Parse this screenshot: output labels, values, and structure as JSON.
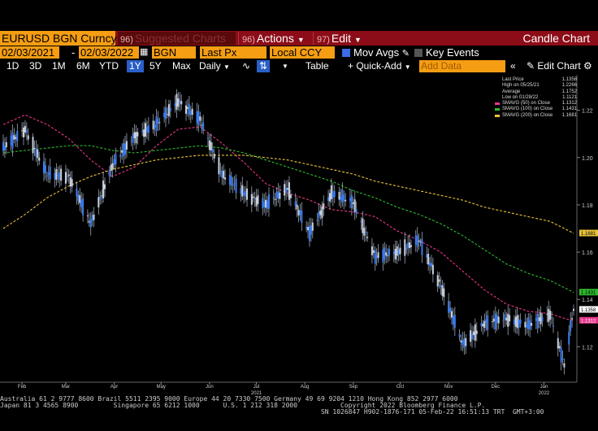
{
  "topbar": {
    "ticker": "EURUSD BGN Curncy",
    "suggested": {
      "num": "96)",
      "label": "Suggested Charts"
    },
    "actions": {
      "num": "96)",
      "label": "Actions"
    },
    "edit": {
      "num": "97)",
      "label": "Edit"
    },
    "chart_type": "Candle Chart"
  },
  "toolbar": {
    "start_date": "02/03/2021",
    "end_date": "02/03/2022",
    "source": "BGN",
    "field": "Last Px",
    "currency": "Local CCY",
    "mov_avgs_label": "Mov Avgs",
    "key_events_label": "Key Events"
  },
  "toolbar2": {
    "periods": [
      "1D",
      "3D",
      "1M",
      "6M",
      "YTD",
      "1Y",
      "5Y",
      "Max"
    ],
    "selected_period": "1Y",
    "frequency": "Daily",
    "table_label": "Table",
    "quick_add_label": "+ Quick-Add",
    "add_data_placeholder": "Add Data",
    "edit_chart_label": "Edit Chart"
  },
  "legend": [
    {
      "label": "Last Price",
      "value": "1.1358"
    },
    {
      "label": "High on 05/25/21",
      "value": "1.2266"
    },
    {
      "label": "Average",
      "value": "1.1752"
    },
    {
      "label": "Low on 01/28/22",
      "value": "1.1121"
    },
    {
      "label": "SMAVG (50) on Close",
      "value": "1.1312"
    },
    {
      "label": "SMAVG (100) on Close",
      "value": "1.1431"
    },
    {
      "label": "SMAVG (200) on Close",
      "value": "1.1681"
    }
  ],
  "footer": {
    "line1": "Australia 61 2 9777 8600 Brazil 5511 2395 9000 Europe 44 20 7330 7500 Germany 49 69 9204 1210 Hong Kong 852 2977 6000",
    "line2": "Japan 81 3 4565 8900         Singapore 65 6212 1000      U.S. 1 212 318 2000           Copyright 2022 Bloomberg Finance L.P.",
    "line3": "                                                                                  SN 1026847 H902-1876-171 05-Feb-22 16:51:13 TRT  GMT+3:00"
  },
  "colors": {
    "price": "#3b7cf0",
    "sma50": "#e8358a",
    "sma100": "#2fb82f",
    "sma200": "#e8c23a",
    "brand": "#f59d13",
    "bar": "#8c0c18"
  },
  "chart_data": {
    "type": "line",
    "title": "",
    "xlabel": "",
    "ylabel": "",
    "ylim": [
      1.105,
      1.235
    ],
    "y_ticks": [
      1.12,
      1.14,
      1.16,
      1.18,
      1.2,
      1.22
    ],
    "x_tick_labels": [
      "Feb",
      "Mar",
      "Apr",
      "May",
      "Jun",
      "Jul",
      "Aug",
      "Sep",
      "Oct",
      "Nov",
      "Dec",
      "Jan"
    ],
    "x_year_labels": [
      {
        "label": "2021",
        "at": "Jul"
      },
      {
        "label": "2022",
        "at": "Jan"
      }
    ],
    "grid": false,
    "legend_position": "top-right",
    "value_tags": [
      {
        "value": 1.1681,
        "series": "SMAVG (200)"
      },
      {
        "value": 1.1431,
        "series": "SMAVG (100)"
      },
      {
        "value": 1.1358,
        "series": "Last Price"
      },
      {
        "value": 1.1312,
        "series": "SMAVG (50)"
      }
    ],
    "dates": [
      "2021-02-03",
      "2021-02-17",
      "2021-03-03",
      "2021-03-17",
      "2021-03-31",
      "2021-04-14",
      "2021-04-28",
      "2021-05-12",
      "2021-05-26",
      "2021-06-09",
      "2021-06-23",
      "2021-07-07",
      "2021-07-21",
      "2021-08-04",
      "2021-08-18",
      "2021-09-01",
      "2021-09-15",
      "2021-09-29",
      "2021-10-13",
      "2021-10-27",
      "2021-11-10",
      "2021-11-24",
      "2021-12-08",
      "2021-12-22",
      "2022-01-05",
      "2022-01-19",
      "2022-01-28",
      "2022-02-03"
    ],
    "series": [
      {
        "name": "Last Price",
        "values": [
          1.204,
          1.212,
          1.193,
          1.192,
          1.172,
          1.197,
          1.209,
          1.214,
          1.224,
          1.216,
          1.193,
          1.185,
          1.18,
          1.187,
          1.168,
          1.185,
          1.181,
          1.158,
          1.16,
          1.165,
          1.146,
          1.121,
          1.13,
          1.132,
          1.129,
          1.134,
          1.112,
          1.136
        ]
      },
      {
        "name": "SMAVG (50)",
        "values": [
          1.214,
          1.218,
          1.214,
          1.208,
          1.199,
          1.192,
          1.196,
          1.205,
          1.212,
          1.213,
          1.206,
          1.198,
          1.189,
          1.185,
          1.182,
          1.178,
          1.177,
          1.175,
          1.169,
          1.165,
          1.16,
          1.152,
          1.144,
          1.138,
          1.135,
          1.134,
          1.132,
          1.131
        ]
      },
      {
        "name": "SMAVG (100)",
        "values": [
          1.202,
          1.203,
          1.204,
          1.205,
          1.205,
          1.203,
          1.202,
          1.203,
          1.204,
          1.205,
          1.204,
          1.202,
          1.199,
          1.196,
          1.193,
          1.19,
          1.186,
          1.183,
          1.179,
          1.176,
          1.172,
          1.167,
          1.161,
          1.155,
          1.151,
          1.148,
          1.145,
          1.143
        ]
      },
      {
        "name": "SMAVG (200)",
        "values": [
          1.17,
          1.176,
          1.183,
          1.188,
          1.192,
          1.195,
          1.197,
          1.199,
          1.2,
          1.201,
          1.201,
          1.201,
          1.2,
          1.199,
          1.197,
          1.195,
          1.193,
          1.19,
          1.188,
          1.186,
          1.184,
          1.182,
          1.179,
          1.177,
          1.175,
          1.173,
          1.17,
          1.168
        ]
      }
    ]
  }
}
